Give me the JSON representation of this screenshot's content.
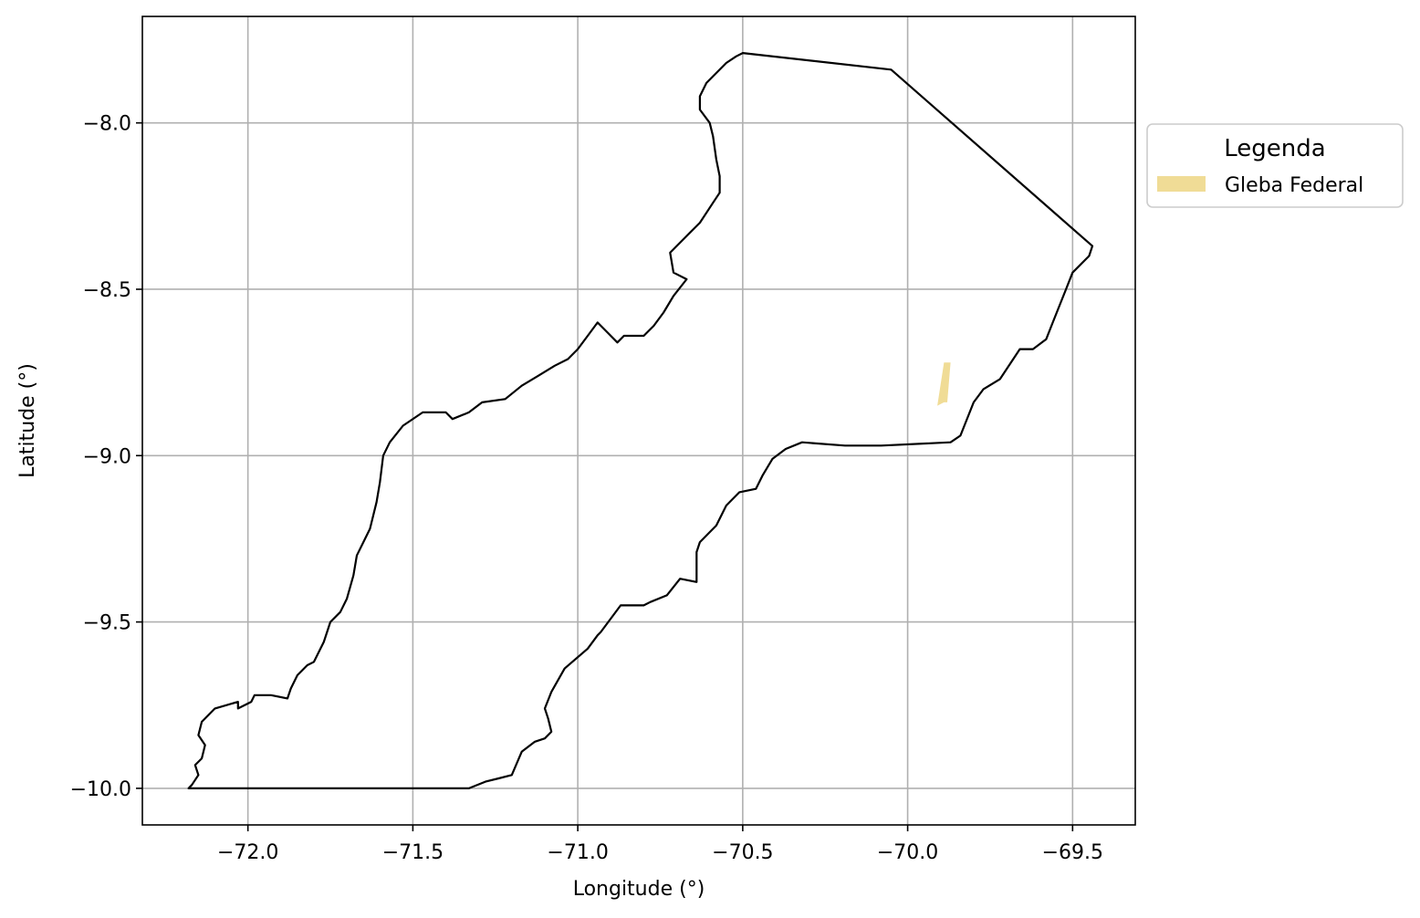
{
  "chart_data": {
    "type": "map",
    "xlabel": "Longitude (°)",
    "ylabel": "Latitude (°)",
    "xlim": [
      -72.32,
      -69.31
    ],
    "ylim": [
      -10.11,
      -7.68
    ],
    "grid": true,
    "xticks": [
      -72.0,
      -71.5,
      -71.0,
      -70.5,
      -70.0,
      -69.5
    ],
    "xtick_labels": [
      "−72.0",
      "−71.5",
      "−71.0",
      "−70.5",
      "−70.0",
      "−69.5"
    ],
    "yticks": [
      -8.0,
      -8.5,
      -9.0,
      -9.5,
      -10.0
    ],
    "ytick_labels": [
      "−8.0",
      "−8.5",
      "−9.0",
      "−9.5",
      "−10.0"
    ],
    "legend": {
      "title": "Legenda",
      "placement": "outside-right-top",
      "entries": [
        {
          "label": "Gleba Federal",
          "color": "#f0dc96"
        }
      ]
    },
    "boundary": {
      "color": "#000000",
      "points": [
        [
          -70.5,
          -7.79
        ],
        [
          -70.05,
          -7.84
        ],
        [
          -69.44,
          -8.37
        ],
        [
          -69.45,
          -8.4
        ],
        [
          -69.5,
          -8.45
        ],
        [
          -69.52,
          -8.5
        ],
        [
          -69.56,
          -8.6
        ],
        [
          -69.58,
          -8.65
        ],
        [
          -69.62,
          -8.68
        ],
        [
          -69.66,
          -8.68
        ],
        [
          -69.72,
          -8.77
        ],
        [
          -69.77,
          -8.8
        ],
        [
          -69.8,
          -8.84
        ],
        [
          -69.84,
          -8.94
        ],
        [
          -69.87,
          -8.96
        ],
        [
          -70.08,
          -8.97
        ],
        [
          -70.19,
          -8.97
        ],
        [
          -70.32,
          -8.96
        ],
        [
          -70.37,
          -8.98
        ],
        [
          -70.41,
          -9.01
        ],
        [
          -70.44,
          -9.06
        ],
        [
          -70.46,
          -9.1
        ],
        [
          -70.51,
          -9.11
        ],
        [
          -70.55,
          -9.15
        ],
        [
          -70.58,
          -9.21
        ],
        [
          -70.63,
          -9.26
        ],
        [
          -70.64,
          -9.29
        ],
        [
          -70.64,
          -9.38
        ],
        [
          -70.69,
          -9.37
        ],
        [
          -70.73,
          -9.42
        ],
        [
          -70.78,
          -9.44
        ],
        [
          -70.8,
          -9.45
        ],
        [
          -70.87,
          -9.45
        ],
        [
          -70.93,
          -9.53
        ],
        [
          -70.94,
          -9.54
        ],
        [
          -70.97,
          -9.58
        ],
        [
          -71.04,
          -9.64
        ],
        [
          -71.08,
          -9.71
        ],
        [
          -71.1,
          -9.76
        ],
        [
          -71.09,
          -9.79
        ],
        [
          -71.08,
          -9.83
        ],
        [
          -71.1,
          -9.85
        ],
        [
          -71.13,
          -9.86
        ],
        [
          -71.17,
          -9.89
        ],
        [
          -71.2,
          -9.96
        ],
        [
          -71.24,
          -9.97
        ],
        [
          -71.28,
          -9.98
        ],
        [
          -71.33,
          -10.0
        ],
        [
          -71.38,
          -10.0
        ],
        [
          -72.18,
          -10.0
        ],
        [
          -72.17,
          -9.99
        ],
        [
          -72.15,
          -9.96
        ],
        [
          -72.16,
          -9.93
        ],
        [
          -72.14,
          -9.91
        ],
        [
          -72.13,
          -9.87
        ],
        [
          -72.15,
          -9.84
        ],
        [
          -72.14,
          -9.8
        ],
        [
          -72.1,
          -9.76
        ],
        [
          -72.03,
          -9.74
        ],
        [
          -72.03,
          -9.76
        ],
        [
          -71.99,
          -9.74
        ],
        [
          -71.98,
          -9.72
        ],
        [
          -71.93,
          -9.72
        ],
        [
          -71.88,
          -9.73
        ],
        [
          -71.87,
          -9.7
        ],
        [
          -71.85,
          -9.66
        ],
        [
          -71.82,
          -9.63
        ],
        [
          -71.8,
          -9.62
        ],
        [
          -71.77,
          -9.56
        ],
        [
          -71.75,
          -9.5
        ],
        [
          -71.72,
          -9.47
        ],
        [
          -71.7,
          -9.43
        ],
        [
          -71.68,
          -9.36
        ],
        [
          -71.67,
          -9.3
        ],
        [
          -71.65,
          -9.26
        ],
        [
          -71.63,
          -9.22
        ],
        [
          -71.62,
          -9.18
        ],
        [
          -71.61,
          -9.14
        ],
        [
          -71.6,
          -9.08
        ],
        [
          -71.59,
          -9.0
        ],
        [
          -71.57,
          -8.96
        ],
        [
          -71.53,
          -8.91
        ],
        [
          -71.47,
          -8.87
        ],
        [
          -71.4,
          -8.87
        ],
        [
          -71.38,
          -8.89
        ],
        [
          -71.33,
          -8.87
        ],
        [
          -71.29,
          -8.84
        ],
        [
          -71.22,
          -8.83
        ],
        [
          -71.17,
          -8.79
        ],
        [
          -71.12,
          -8.76
        ],
        [
          -71.07,
          -8.73
        ],
        [
          -71.03,
          -8.71
        ],
        [
          -71.0,
          -8.68
        ],
        [
          -70.97,
          -8.64
        ],
        [
          -70.94,
          -8.6
        ],
        [
          -70.91,
          -8.63
        ],
        [
          -70.88,
          -8.66
        ],
        [
          -70.86,
          -8.64
        ],
        [
          -70.8,
          -8.64
        ],
        [
          -70.77,
          -8.61
        ],
        [
          -70.74,
          -8.57
        ],
        [
          -70.71,
          -8.52
        ],
        [
          -70.67,
          -8.47
        ],
        [
          -70.71,
          -8.45
        ],
        [
          -70.72,
          -8.39
        ],
        [
          -70.67,
          -8.34
        ],
        [
          -70.63,
          -8.3
        ],
        [
          -70.59,
          -8.24
        ],
        [
          -70.57,
          -8.21
        ],
        [
          -70.57,
          -8.16
        ],
        [
          -70.58,
          -8.11
        ],
        [
          -70.59,
          -8.04
        ],
        [
          -70.6,
          -8.0
        ],
        [
          -70.63,
          -7.96
        ],
        [
          -70.63,
          -7.92
        ],
        [
          -70.61,
          -7.88
        ],
        [
          -70.58,
          -7.85
        ],
        [
          -70.55,
          -7.82
        ],
        [
          -70.52,
          -7.8
        ],
        [
          -70.5,
          -7.79
        ]
      ]
    },
    "gleba_federal": {
      "color": "#f0dc96",
      "points": [
        [
          -69.89,
          -8.72
        ],
        [
          -69.87,
          -8.72
        ],
        [
          -69.88,
          -8.84
        ],
        [
          -69.89,
          -8.84
        ],
        [
          -69.91,
          -8.85
        ],
        [
          -69.91,
          -8.85
        ],
        [
          -69.89,
          -8.72
        ]
      ]
    }
  }
}
